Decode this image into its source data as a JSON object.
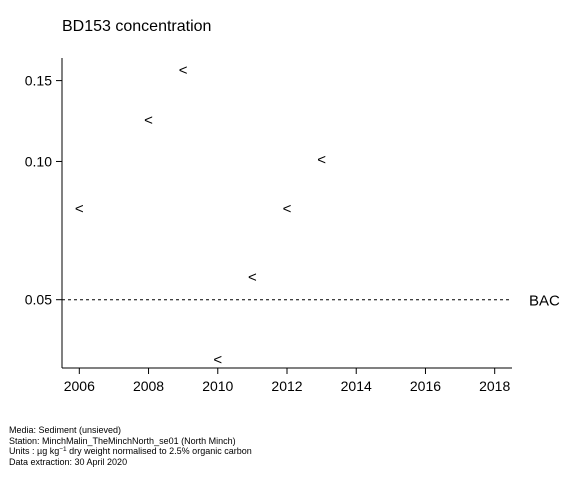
{
  "chart_data": {
    "type": "scatter",
    "title": "BD153 concentration",
    "xlabel": "",
    "ylabel": "",
    "y_scale": "log",
    "xlim": [
      2005.5,
      2018.5
    ],
    "ylim": [
      0.0355,
      0.168
    ],
    "x_ticks": [
      2006,
      2008,
      2010,
      2012,
      2014,
      2016,
      2018
    ],
    "x_tick_labels": [
      "2006",
      "2008",
      "2010",
      "2012",
      "2014",
      "2016",
      "2018"
    ],
    "y_ticks": [
      0.05,
      0.1,
      0.15
    ],
    "y_tick_labels": [
      "0.05",
      "0.10",
      "0.15"
    ],
    "grid": false,
    "marker": "<",
    "points": [
      {
        "x": 2006,
        "y": 0.079
      },
      {
        "x": 2008,
        "y": 0.123
      },
      {
        "x": 2009,
        "y": 0.158
      },
      {
        "x": 2010,
        "y": 0.037
      },
      {
        "x": 2011,
        "y": 0.056
      },
      {
        "x": 2012,
        "y": 0.079
      },
      {
        "x": 2013,
        "y": 0.101
      }
    ],
    "reference_line": {
      "label": "BAC",
      "y": 0.05,
      "style": "dashed"
    }
  },
  "footer": {
    "media": "Media: Sediment (unsieved)",
    "station": "Station: MinchMalin_TheMinchNorth_se01 (North Minch)",
    "units_prefix": "Units : µg kg",
    "units_exp": "−1",
    "units_suffix": " dry weight normalised to 2.5% organic carbon",
    "extraction": "Data extraction: 30 April 2020"
  }
}
